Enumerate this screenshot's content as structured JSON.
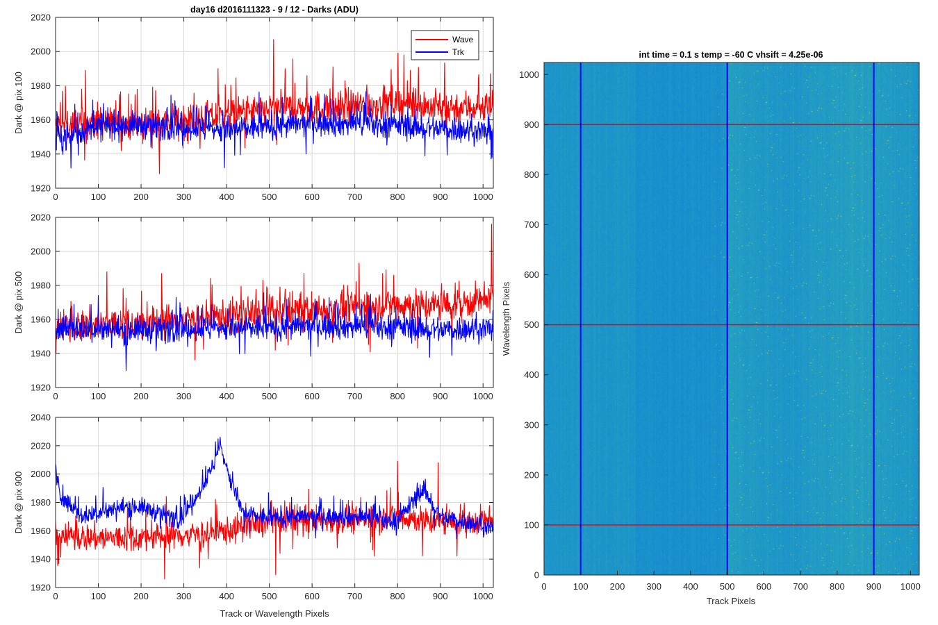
{
  "figure_title": "day16 d2016111323 - 9 / 12 - Darks (ADU)",
  "image_title": "int time = 0.1 s   temp = -60 C   vhsift = 4.25e-06",
  "colors": {
    "wave": "#ff0000",
    "trk": "#0000ff",
    "grid": "#d9d9d9",
    "axes": "#262626",
    "heatmap_base": "#1e90c8",
    "heatmap_hot": "#8fd07a"
  },
  "chart_data": [
    {
      "type": "line",
      "panel": "top-left",
      "ylabel": "Dark @ pix 100",
      "xlim": [
        0,
        1024
      ],
      "ylim": [
        1920,
        2020
      ],
      "xticks": [
        0,
        100,
        200,
        300,
        400,
        500,
        600,
        700,
        800,
        900,
        1000
      ],
      "yticks": [
        1920,
        1940,
        1960,
        1980,
        2000,
        2020
      ],
      "grid": true,
      "legend": {
        "placement": "top-right",
        "entries": [
          "Wave",
          "Trk"
        ]
      },
      "series": [
        {
          "name": "Wave",
          "color": "#ff0000",
          "x": [
            0,
            100,
            200,
            300,
            400,
            500,
            600,
            700,
            800,
            900,
            1024
          ],
          "values": [
            1956,
            1958,
            1957,
            1960,
            1962,
            1966,
            1967,
            1968,
            1970,
            1967,
            1968
          ],
          "noise": 9,
          "spikes": [
            [
              70,
              1989
            ],
            [
              380,
              1990
            ],
            [
              510,
              2007
            ],
            [
              815,
              1998
            ]
          ]
        },
        {
          "name": "Trk",
          "color": "#0000ff",
          "x": [
            0,
            100,
            200,
            300,
            400,
            500,
            600,
            700,
            800,
            900,
            1024
          ],
          "values": [
            1948,
            1956,
            1957,
            1956,
            1954,
            1956,
            1958,
            1958,
            1957,
            1955,
            1953
          ],
          "noise": 7,
          "spikes": [
            [
              395,
              1932
            ]
          ]
        }
      ]
    },
    {
      "type": "line",
      "panel": "middle-left",
      "ylabel": "Dark @ pix 500",
      "xlim": [
        0,
        1024
      ],
      "ylim": [
        1920,
        2020
      ],
      "xticks": [
        0,
        100,
        200,
        300,
        400,
        500,
        600,
        700,
        800,
        900,
        1000
      ],
      "yticks": [
        1920,
        1940,
        1960,
        1980,
        2000,
        2020
      ],
      "grid": true,
      "series": [
        {
          "name": "Wave",
          "color": "#ff0000",
          "x": [
            0,
            100,
            200,
            300,
            400,
            500,
            600,
            700,
            800,
            900,
            1024
          ],
          "values": [
            1955,
            1957,
            1958,
            1960,
            1962,
            1964,
            1966,
            1967,
            1969,
            1968,
            1972
          ],
          "noise": 9,
          "spikes": [
            [
              120,
              1988
            ],
            [
              485,
              1983
            ],
            [
              710,
              1993
            ],
            [
              1020,
              2016
            ]
          ]
        },
        {
          "name": "Trk",
          "color": "#0000ff",
          "x": [
            0,
            100,
            200,
            300,
            400,
            500,
            600,
            700,
            800,
            900,
            1024
          ],
          "values": [
            1955,
            1954,
            1954,
            1955,
            1955,
            1955,
            1956,
            1956,
            1956,
            1954,
            1955
          ],
          "noise": 7,
          "spikes": [
            [
              165,
              1930
            ]
          ]
        }
      ]
    },
    {
      "type": "line",
      "panel": "bottom-left",
      "ylabel": "Dark @ pix 900",
      "xlabel": "Track or Wavelength Pixels",
      "xlim": [
        0,
        1024
      ],
      "ylim": [
        1920,
        2040
      ],
      "xticks": [
        0,
        100,
        200,
        300,
        400,
        500,
        600,
        700,
        800,
        900,
        1000
      ],
      "yticks": [
        1920,
        1940,
        1960,
        1980,
        2000,
        2020,
        2040
      ],
      "grid": true,
      "series": [
        {
          "name": "Wave",
          "color": "#ff0000",
          "x": [
            0,
            100,
            200,
            300,
            400,
            500,
            600,
            700,
            800,
            900,
            1024
          ],
          "values": [
            1956,
            1955,
            1955,
            1957,
            1960,
            1966,
            1968,
            1968,
            1970,
            1966,
            1967
          ],
          "noise": 9,
          "spikes": [
            [
              255,
              1926
            ],
            [
              515,
              1929
            ],
            [
              800,
              2009
            ],
            [
              895,
              2008
            ]
          ]
        },
        {
          "name": "Trk",
          "color": "#0000ff",
          "x": [
            0,
            10,
            60,
            120,
            180,
            240,
            290,
            330,
            360,
            385,
            410,
            440,
            500,
            600,
            700,
            800,
            860,
            900,
            1024
          ],
          "values": [
            2003,
            1985,
            1970,
            1974,
            1978,
            1973,
            1968,
            1985,
            2000,
            2020,
            1995,
            1972,
            1969,
            1970,
            1970,
            1967,
            1990,
            1970,
            1962
          ],
          "noise": 6,
          "spikes": [
            [
              385,
              2026
            ]
          ]
        }
      ]
    },
    {
      "type": "heatmap",
      "panel": "right",
      "title": "int time = 0.1 s   temp = -60 C   vhsift = 4.25e-06",
      "xlabel": "Track Pixels",
      "ylabel": "Wavelength Pixels",
      "xlim": [
        0,
        1024
      ],
      "ylim": [
        0,
        1024
      ],
      "xticks": [
        0,
        100,
        200,
        300,
        400,
        500,
        600,
        700,
        800,
        900,
        1000
      ],
      "yticks": [
        0,
        100,
        200,
        300,
        400,
        500,
        600,
        700,
        800,
        900,
        1000
      ],
      "vertical_lines": {
        "color": "#0000ff",
        "x": [
          100,
          500,
          900
        ]
      },
      "horizontal_lines": {
        "color": "#ff0000",
        "y": [
          100,
          500,
          900
        ]
      }
    }
  ]
}
